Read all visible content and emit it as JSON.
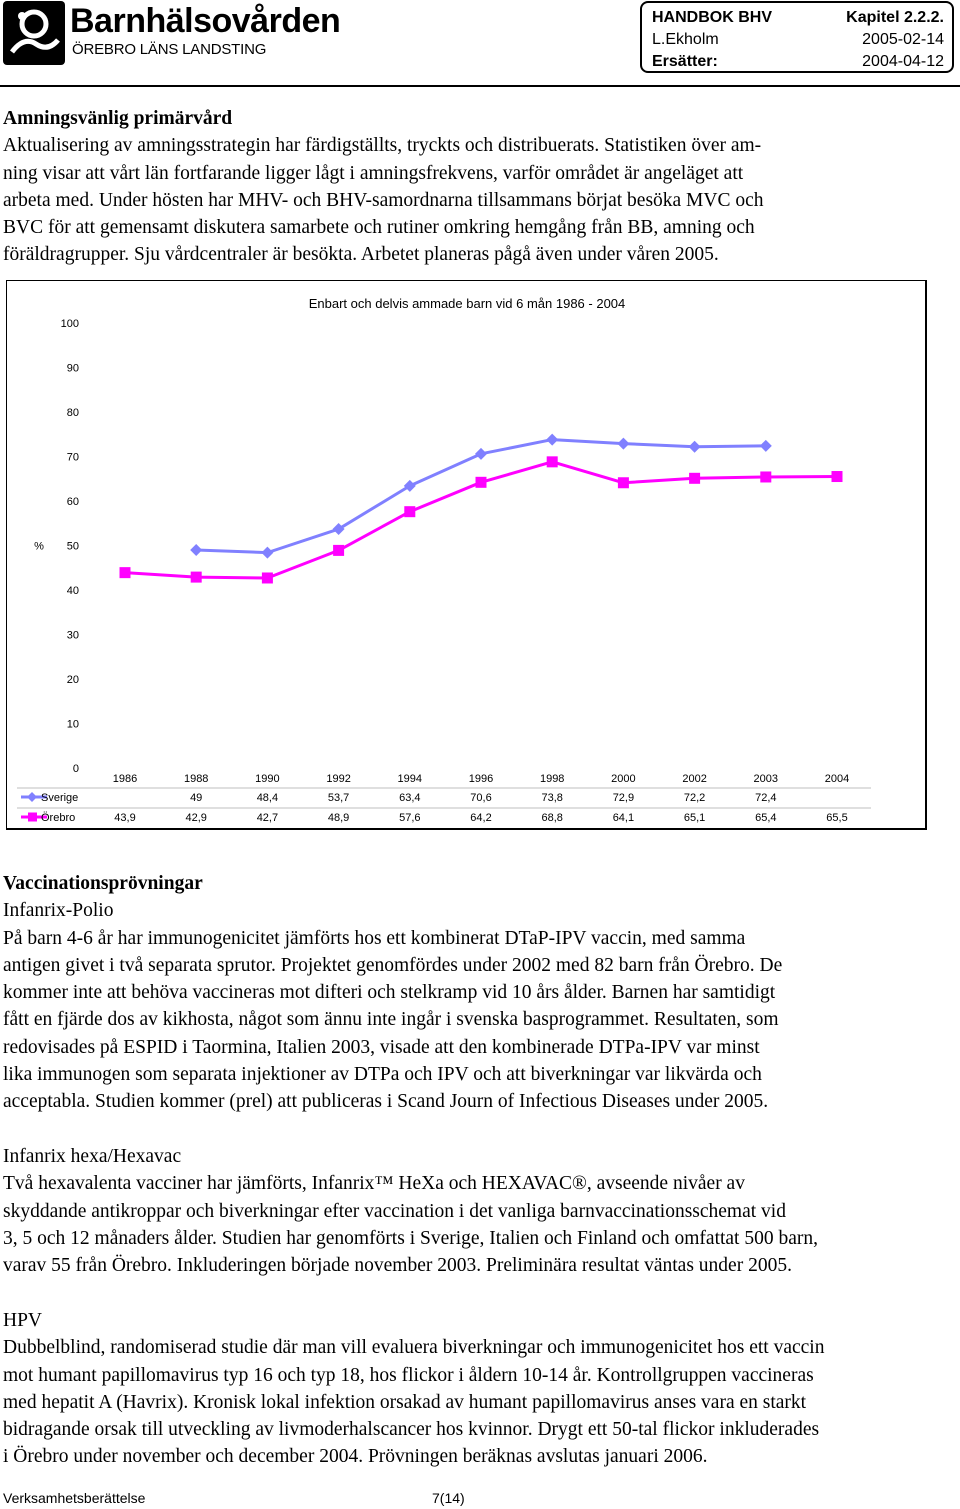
{
  "header": {
    "org_name": "Barnhälsovården",
    "org_sub": "ÖREBRO LÄNS LANDSTING",
    "handbook": "HANDBOK BHV",
    "chapter": "Kapitel 2.2.2.",
    "author": "L.Ekholm",
    "date": "2005-02-14",
    "replaces_label": "Ersätter:",
    "replaces_date": "2004-04-12"
  },
  "section1": {
    "heading": "Amningsvänlig primärvård",
    "lines": [
      "Aktualisering av amningsstrategin har färdigställts, tryckts och distribuerats. Statistiken över am-",
      "ning visar att vårt län fortfarande ligger lågt i amningsfrekvens, varför området är angeläget att",
      "arbeta med. Under hösten har MHV- och BHV-samordnarna tillsammans börjat besöka MVC och",
      "BVC för att gemensamt diskutera samarbete och rutiner omkring hemgång från BB, amning och",
      "föräldragrupper. Sju vårdcentraler är besökta. Arbetet planeras pågå även under våren 2005."
    ]
  },
  "chart_data": {
    "type": "line",
    "title": "Enbart och delvis ammade barn vid 6 mån 1986 - 2004",
    "ylabel": "%",
    "xlabel": "",
    "ylim": [
      0,
      100
    ],
    "y_ticks": [
      "0",
      "10",
      "20",
      "30",
      "40",
      "50",
      "60",
      "70",
      "80",
      "90",
      "100"
    ],
    "categories": [
      "1986",
      "1988",
      "1990",
      "1992",
      "1994",
      "1996",
      "1998",
      "2000",
      "2002",
      "2003",
      "2004"
    ],
    "series": [
      {
        "name": "Sverige",
        "color": "#8080ff",
        "marker": "diamond",
        "values": [
          null,
          49,
          48.4,
          53.7,
          63.4,
          70.6,
          73.8,
          72.9,
          72.2,
          72.4,
          null
        ],
        "labels": [
          "",
          "49",
          "48,4",
          "53,7",
          "63,4",
          "70,6",
          "73,8",
          "72,9",
          "72,2",
          "72,4",
          ""
        ]
      },
      {
        "name": "Örebro",
        "color": "#ff00ff",
        "marker": "square",
        "values": [
          43.9,
          42.9,
          42.7,
          48.9,
          57.6,
          64.2,
          68.8,
          64.1,
          65.1,
          65.4,
          65.5
        ],
        "labels": [
          "43,9",
          "42,9",
          "42,7",
          "48,9",
          "57,6",
          "64,2",
          "68,8",
          "64,1",
          "65,1",
          "65,4",
          "65,5"
        ]
      }
    ],
    "grid": false,
    "legend": "data-table"
  },
  "section2": {
    "heading": "Vaccinationsprövningar",
    "subheading": "Infanrix-Polio",
    "lines": [
      "På barn 4-6 år har immunogenicitet jämförts hos ett kombinerat DTaP-IPV vaccin, med samma",
      "antigen givet i två separata sprutor. Projektet genomfördes under 2002 med 82 barn från Örebro. De",
      "kommer inte att behöva vaccineras mot difteri och stelkramp vid 10 års ålder. Barnen har samtidigt",
      "fått en fjärde dos av kikhosta, något som ännu inte ingår i svenska basprogrammet. Resultaten, som",
      "redovisades på ESPID i Taormina, Italien 2003, visade att den kombinerade DTPa-IPV var minst",
      "lika immunogen som separata injektioner av DTPa och IPV och att biverkningar var likvärda och",
      "acceptabla. Studien kommer (prel) att publiceras i Scand Journ of Infectious Diseases under 2005."
    ]
  },
  "section3": {
    "subheading": "Infanrix hexa/Hexavac",
    "lines": [
      "Två hexavalenta vacciner har jämförts, Infanrix™ HeXa och HEXAVAC®, avseende nivåer av",
      "skyddande antikroppar och biverkningar efter vaccination i det vanliga barnvaccinationsschemat vid",
      "3, 5 och 12 månaders ålder. Studien har genomförts i Sverige, Italien och Finland och omfattat 500 barn,",
      "varav 55 från Örebro. Inkluderingen började november 2003. Preliminära resultat väntas under 2005."
    ]
  },
  "section4": {
    "subheading": "HPV",
    "lines": [
      "Dubbelblind, randomiserad studie där man vill evaluera biverkningar och immunogenicitet hos ett vaccin",
      "mot humant papillomavirus typ 16 och typ 18, hos flickor i åldern 10-14 år. Kontrollgruppen vaccineras",
      "med hepatit A (Havrix). Kronisk lokal infektion orsakad av humant papillomavirus anses vara en starkt",
      "bidragande orsak till utveckling av livmoderhalscancer hos kvinnor. Drygt ett 50-tal flickor inkluderades",
      "i Örebro under november och december 2004. Prövningen beräknas avslutas januari 2006."
    ]
  },
  "footer": {
    "left": "Verksamhetsberättelse",
    "page": "7(14)"
  }
}
